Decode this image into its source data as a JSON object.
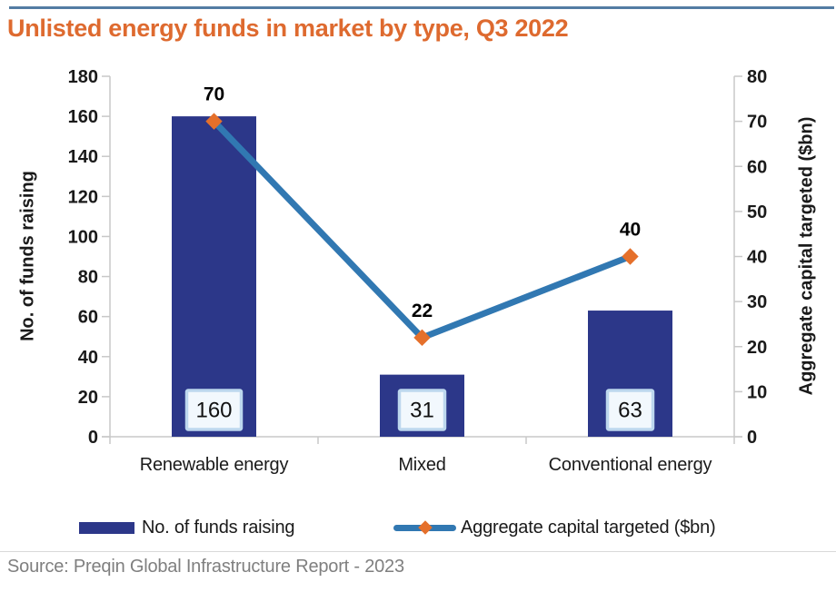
{
  "title": "Unlisted energy funds in market by type, Q3 2022",
  "source": "Source: Preqin Global Infrastructure Report - 2023",
  "colors": {
    "bar": "#2C3789",
    "line": "#3178B2",
    "marker": "#E5702B",
    "title": "#DE6A2F",
    "axis": "#C8C8C8",
    "tick_label": "#1A1A1A",
    "top_rule": "#537CA3",
    "divider": "#D9D9D9",
    "source_text": "#7F7F7F",
    "label_box_fill": "#F2F8FD",
    "label_box_border": "#BDD7EE"
  },
  "chart_data": {
    "type": "bar+line combo",
    "title": "Unlisted energy funds in market by type, Q3 2022",
    "categories": [
      "Renewable energy",
      "Mixed",
      "Conventional energy"
    ],
    "series": [
      {
        "name": "No. of funds raising",
        "type": "bar",
        "axis": "left",
        "values": [
          160,
          31,
          63
        ]
      },
      {
        "name": "Aggregate capital targeted ($bn)",
        "type": "line",
        "axis": "right",
        "values": [
          70,
          22,
          40
        ]
      }
    ],
    "left_axis": {
      "label": "No. of funds raising",
      "min": 0,
      "max": 180,
      "step": 20
    },
    "right_axis": {
      "label": "Aggregate capital targeted ($bn)",
      "min": 0,
      "max": 80,
      "step": 10
    },
    "grid": false,
    "legend_position": "bottom"
  }
}
